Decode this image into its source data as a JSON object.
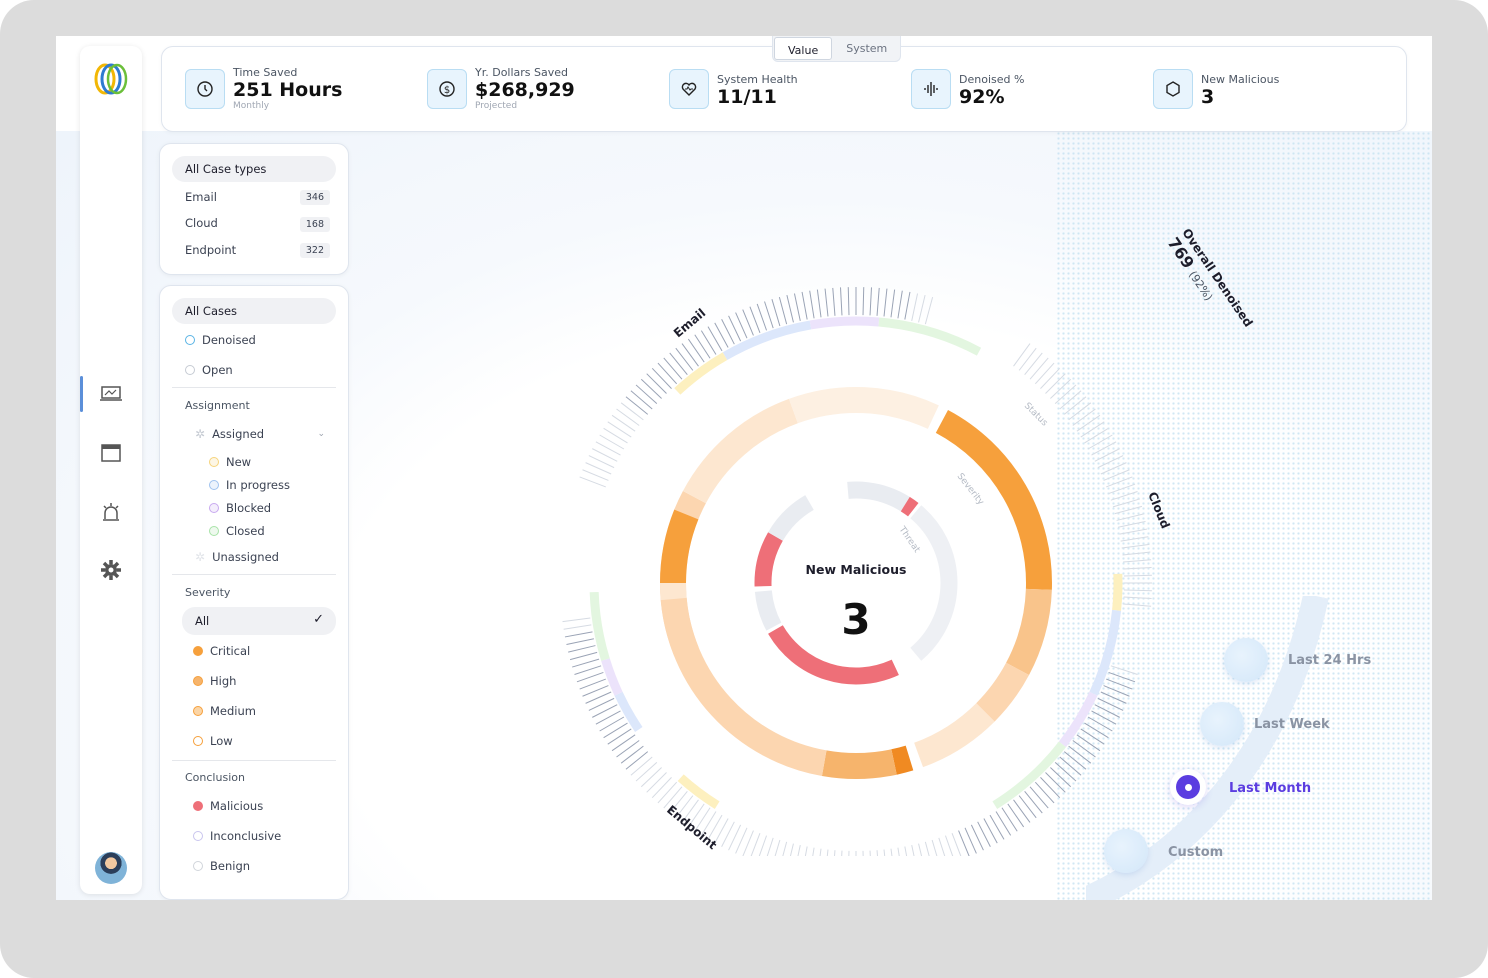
{
  "kpis": [
    {
      "label": "Time Saved",
      "value": "251 Hours",
      "sub": "Monthly",
      "icon": "clock-icon"
    },
    {
      "label": "Yr. Dollars Saved",
      "value": "$268,929",
      "sub": "Projected",
      "icon": "dollar-icon"
    },
    {
      "label": "System Health",
      "value": "11/11",
      "sub": "",
      "icon": "heart-icon"
    },
    {
      "label": "Denoised %",
      "value": "92%",
      "sub": "",
      "icon": "waveform-icon"
    },
    {
      "label": "New Malicious",
      "value": "3",
      "sub": "",
      "icon": "hexagon-icon"
    }
  ],
  "tabs": {
    "value": "Value",
    "system": "System"
  },
  "case_types": {
    "all": "All Case types",
    "items": [
      {
        "label": "Email",
        "count": "346"
      },
      {
        "label": "Cloud",
        "count": "168"
      },
      {
        "label": "Endpoint",
        "count": "322"
      }
    ]
  },
  "filters": {
    "all_cases": "All Cases",
    "denoised": "Denoised",
    "open": "Open",
    "assignment": "Assignment",
    "assigned": "Assigned",
    "assigned_items": [
      "New",
      "In progress",
      "Blocked",
      "Closed"
    ],
    "assigned_colors": [
      "#f6d47c",
      "#9fc2ef",
      "#c8a9ef",
      "#a8e3a8"
    ],
    "unassigned": "Unassigned",
    "severity": "Severity",
    "severity_all": "All",
    "severity_items": [
      "Critical",
      "High",
      "Medium",
      "Low"
    ],
    "conclusion": "Conclusion",
    "conclusion_items": [
      "Malicious",
      "Inconclusive",
      "Benign"
    ]
  },
  "chart": {
    "center_label": "New Malicious",
    "center_value": "3",
    "ring_labels": {
      "status": "Status",
      "severity": "Severity",
      "threat": "Threat"
    },
    "segment_labels": {
      "email": "Email",
      "cloud": "Cloud",
      "endpoint": "Endpoint"
    },
    "overall_label": "Overall Denoised",
    "overall_value": "769",
    "overall_pct": "(92%)"
  },
  "time_range": {
    "options": [
      "Last 24 Hrs",
      "Last Week",
      "Last Month",
      "Custom"
    ],
    "selected": "Last Month"
  },
  "colors": {
    "accent": "#5b3de0",
    "orange": "#f6a03c",
    "red": "#ee6f78",
    "blue": "#5b8fd9"
  }
}
